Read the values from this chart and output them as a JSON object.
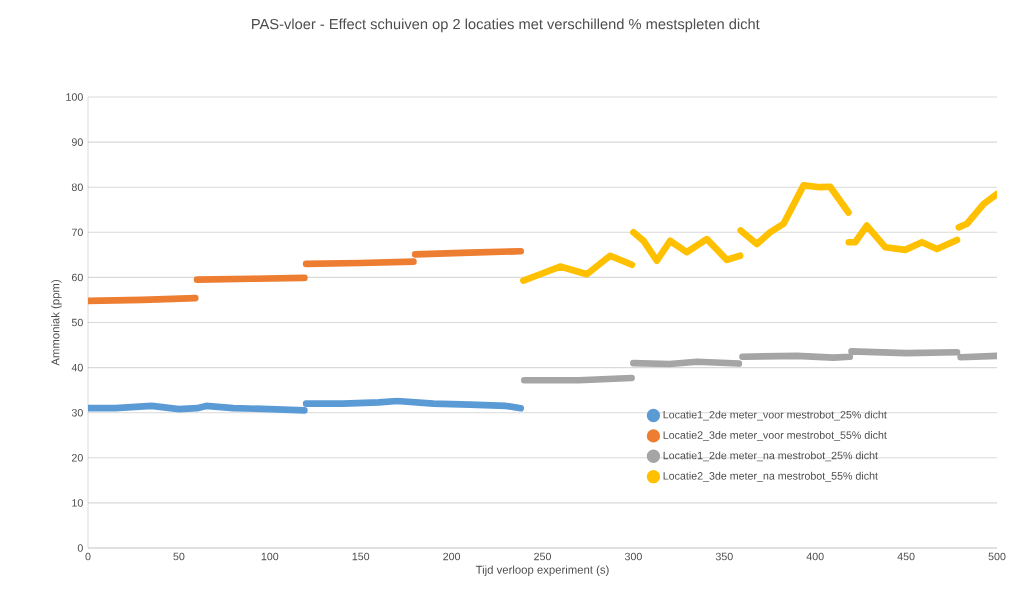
{
  "chart_data": {
    "type": "line",
    "title": "PAS-vloer - Effect schuiven op 2 locaties met verschillend % mestspleten dicht",
    "xlabel": "Tijd verloop experiment (s)",
    "ylabel": "Ammoniak (ppm)",
    "xlim": [
      0,
      500
    ],
    "ylim": [
      0,
      100
    ],
    "xticks": [
      0,
      50,
      100,
      150,
      200,
      250,
      300,
      350,
      400,
      450,
      500
    ],
    "yticks": [
      0,
      10,
      20,
      30,
      40,
      50,
      60,
      70,
      80,
      90,
      100
    ],
    "grid": "y",
    "legend": "bottom right",
    "line_style": "solid",
    "series": [
      {
        "name": "Locatie1_2de meter_voor mestrobot_25% dicht",
        "color": "#5b9bd5",
        "x": [
          0,
          15,
          35,
          50,
          60,
          65,
          80,
          100,
          119,
          119.5,
          120,
          140,
          160,
          170,
          190,
          210,
          230,
          238
        ],
        "values": [
          31,
          31,
          31.5,
          30.8,
          31,
          31.5,
          31,
          30.8,
          30.5,
          null,
          32,
          32,
          32.3,
          32.6,
          32,
          31.8,
          31.5,
          31
        ]
      },
      {
        "name": "Locatie2_3de meter_voor mestrobot_55% dicht",
        "color": "#ed7d31",
        "x": [
          0,
          30,
          59,
          59.5,
          60,
          90,
          119,
          119.5,
          120,
          150,
          179,
          179.5,
          180,
          210,
          238
        ],
        "values": [
          54.8,
          55,
          55.4,
          null,
          59.5,
          59.7,
          59.9,
          null,
          63,
          63.2,
          63.5,
          null,
          65.1,
          65.5,
          65.8
        ]
      },
      {
        "name": "Locatie1_2de meter_na mestrobot_25% dicht",
        "color": "#a5a5a5",
        "x": [
          240,
          270,
          299,
          299.5,
          300,
          320,
          335,
          358,
          359,
          360,
          390,
          410,
          419,
          419.5,
          420,
          450,
          478,
          479,
          480,
          500
        ],
        "values": [
          37.2,
          37.2,
          37.7,
          null,
          41,
          40.8,
          41.3,
          40.9,
          null,
          42.4,
          42.6,
          42.2,
          42.4,
          null,
          43.6,
          43.2,
          43.4,
          null,
          42.3,
          42.6
        ]
      },
      {
        "name": "Locatie2_3de meter_na mestrobot_55% dicht",
        "color": "#ffc000",
        "x": [
          239.5,
          248.7,
          259.7,
          274.4,
          287.2,
          299.2,
          299.6,
          300,
          305.6,
          312.9,
          320.2,
          329.4,
          340.4,
          351.4,
          358.7,
          358.8,
          359,
          367.9,
          375.2,
          382.6,
          393.6,
          402.7,
          408.2,
          418.3,
          418.4,
          418.5,
          422,
          428.4,
          438.5,
          449.5,
          458.7,
          467,
          478,
          478.5,
          479,
          483.5,
          492.7,
          500
        ],
        "values": [
          59.3,
          60.7,
          62.4,
          60.7,
          64.8,
          62.8,
          null,
          70,
          68.1,
          63.7,
          68.1,
          65.6,
          68.5,
          63.9,
          64.8,
          null,
          70.4,
          67.4,
          70,
          71.9,
          80.4,
          80,
          80.1,
          74.4,
          null,
          67.8,
          67.8,
          71.5,
          66.7,
          66.1,
          67.8,
          66.3,
          68.3,
          null,
          71.1,
          71.9,
          76.3,
          78.5
        ]
      }
    ]
  }
}
